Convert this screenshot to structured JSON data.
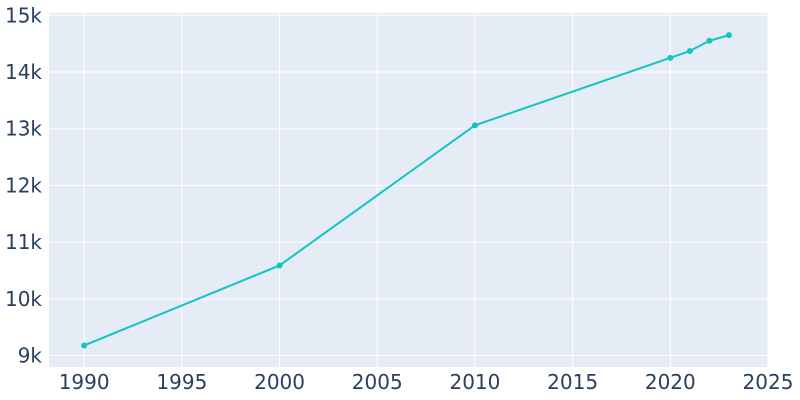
{
  "chart_data": {
    "type": "line",
    "title": "",
    "xlabel": "",
    "ylabel": "",
    "x": [
      1990,
      2000,
      2010,
      2020,
      2021,
      2022,
      2023
    ],
    "series": [
      {
        "values": [
          9180,
          10590,
          13060,
          14250,
          14370,
          14550,
          14650
        ]
      }
    ],
    "xlim": [
      1988.2,
      2025
    ],
    "ylim": [
      8800,
      15040
    ],
    "xticks": [
      1990,
      1995,
      2000,
      2005,
      2010,
      2015,
      2020,
      2025
    ],
    "xtick_labels": [
      "1990",
      "1995",
      "2000",
      "2005",
      "2010",
      "2015",
      "2020",
      "2025"
    ],
    "yticks": [
      9000,
      10000,
      11000,
      12000,
      13000,
      14000,
      15000
    ],
    "ytick_labels": [
      "9k",
      "10k",
      "11k",
      "12k",
      "13k",
      "14k",
      "15k"
    ],
    "grid": true,
    "colors": {
      "line": "#13c4c4",
      "plot_bg": "#e5ecf6",
      "grid": "#ffffff",
      "text": "#2a3f5f"
    }
  }
}
